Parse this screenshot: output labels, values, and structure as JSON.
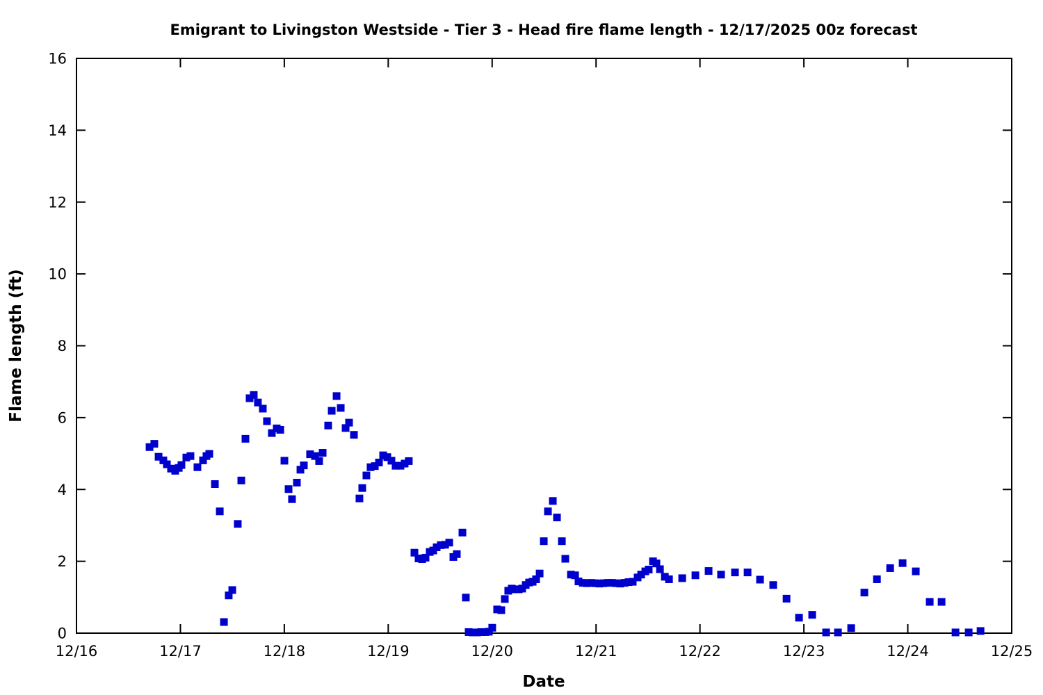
{
  "page": {
    "background_color": "#ffffff"
  },
  "chart_data": {
    "type": "scatter",
    "title": "Emigrant to Livingston Westside - Tier 3 - Head fire flame length - 12/17/2025 00z forecast",
    "xlabel": "Date",
    "ylabel": "Flame length (ft)",
    "grid": false,
    "legend": null,
    "xlim": [
      0,
      9
    ],
    "ylim": [
      0,
      16
    ],
    "x_tick_values": [
      0,
      1,
      2,
      3,
      4,
      5,
      6,
      7,
      8,
      9
    ],
    "x_tick_labels": [
      "12/16",
      "12/17",
      "12/18",
      "12/19",
      "12/20",
      "12/21",
      "12/22",
      "12/23",
      "12/24",
      "12/25"
    ],
    "y_tick_values": [
      0,
      2,
      4,
      6,
      8,
      10,
      12,
      14,
      16
    ],
    "y_tick_labels": [
      "0",
      "2",
      "4",
      "6",
      "8",
      "10",
      "12",
      "14",
      "16"
    ],
    "axis_color": "#000000",
    "marker": {
      "shape": "square",
      "size": 11,
      "color": "#0000cd"
    },
    "x_unit": "days since 12/16 00:00",
    "series": [
      {
        "name": "head-fire-flame-length",
        "points": [
          [
            0.703,
            5.18
          ],
          [
            0.749,
            5.27
          ],
          [
            0.79,
            4.91
          ],
          [
            0.836,
            4.81
          ],
          [
            0.87,
            4.7
          ],
          [
            0.91,
            4.58
          ],
          [
            0.95,
            4.52
          ],
          [
            0.984,
            4.6
          ],
          [
            1.01,
            4.68
          ],
          [
            1.057,
            4.89
          ],
          [
            1.097,
            4.93
          ],
          [
            1.164,
            4.62
          ],
          [
            1.218,
            4.81
          ],
          [
            1.251,
            4.93
          ],
          [
            1.278,
            4.99
          ],
          [
            1.332,
            4.15
          ],
          [
            1.379,
            3.39
          ],
          [
            1.419,
            0.31
          ],
          [
            1.465,
            1.05
          ],
          [
            1.499,
            1.2
          ],
          [
            1.552,
            3.04
          ],
          [
            1.586,
            4.25
          ],
          [
            1.626,
            5.41
          ],
          [
            1.666,
            6.54
          ],
          [
            1.706,
            6.63
          ],
          [
            1.746,
            6.42
          ],
          [
            1.793,
            6.25
          ],
          [
            1.833,
            5.9
          ],
          [
            1.88,
            5.57
          ],
          [
            1.927,
            5.7
          ],
          [
            1.961,
            5.66
          ],
          [
            2.001,
            4.8
          ],
          [
            2.041,
            4.01
          ],
          [
            2.074,
            3.73
          ],
          [
            2.121,
            4.19
          ],
          [
            2.155,
            4.55
          ],
          [
            2.188,
            4.67
          ],
          [
            2.248,
            4.98
          ],
          [
            2.295,
            4.93
          ],
          [
            2.335,
            4.79
          ],
          [
            2.369,
            5.02
          ],
          [
            2.422,
            5.78
          ],
          [
            2.456,
            6.19
          ],
          [
            2.503,
            6.6
          ],
          [
            2.543,
            6.27
          ],
          [
            2.59,
            5.71
          ],
          [
            2.623,
            5.86
          ],
          [
            2.67,
            5.52
          ],
          [
            2.723,
            3.75
          ],
          [
            2.75,
            4.04
          ],
          [
            2.79,
            4.39
          ],
          [
            2.83,
            4.62
          ],
          [
            2.871,
            4.65
          ],
          [
            2.911,
            4.75
          ],
          [
            2.951,
            4.95
          ],
          [
            2.991,
            4.9
          ],
          [
            3.031,
            4.8
          ],
          [
            3.071,
            4.66
          ],
          [
            3.118,
            4.66
          ],
          [
            3.158,
            4.72
          ],
          [
            3.198,
            4.79
          ],
          [
            3.252,
            2.24
          ],
          [
            3.292,
            2.08
          ],
          [
            3.326,
            2.06
          ],
          [
            3.359,
            2.1
          ],
          [
            3.399,
            2.26
          ],
          [
            3.433,
            2.3
          ],
          [
            3.466,
            2.39
          ],
          [
            3.506,
            2.45
          ],
          [
            3.547,
            2.46
          ],
          [
            3.587,
            2.52
          ],
          [
            3.627,
            2.12
          ],
          [
            3.66,
            2.2
          ],
          [
            3.714,
            2.8
          ],
          [
            3.747,
            0.99
          ],
          [
            3.774,
            0.03
          ],
          [
            3.814,
            0.02
          ],
          [
            3.854,
            0.02
          ],
          [
            3.894,
            0.03
          ],
          [
            3.934,
            0.03
          ],
          [
            3.968,
            0.04
          ],
          [
            4.001,
            0.15
          ],
          [
            4.048,
            0.66
          ],
          [
            4.088,
            0.64
          ],
          [
            4.122,
            0.95
          ],
          [
            4.155,
            1.18
          ],
          [
            4.189,
            1.24
          ],
          [
            4.222,
            1.22
          ],
          [
            4.256,
            1.22
          ],
          [
            4.289,
            1.24
          ],
          [
            4.323,
            1.34
          ],
          [
            4.356,
            1.41
          ],
          [
            4.39,
            1.43
          ],
          [
            4.423,
            1.5
          ],
          [
            4.457,
            1.66
          ],
          [
            4.497,
            2.56
          ],
          [
            4.537,
            3.39
          ],
          [
            4.584,
            3.68
          ],
          [
            4.624,
            3.22
          ],
          [
            4.671,
            2.56
          ],
          [
            4.704,
            2.07
          ],
          [
            4.758,
            1.63
          ],
          [
            4.798,
            1.61
          ],
          [
            4.831,
            1.44
          ],
          [
            4.872,
            1.4
          ],
          [
            4.912,
            1.39
          ],
          [
            4.952,
            1.4
          ],
          [
            4.992,
            1.39
          ],
          [
            5.032,
            1.38
          ],
          [
            5.072,
            1.39
          ],
          [
            5.113,
            1.4
          ],
          [
            5.153,
            1.4
          ],
          [
            5.193,
            1.39
          ],
          [
            5.233,
            1.38
          ],
          [
            5.273,
            1.4
          ],
          [
            5.313,
            1.42
          ],
          [
            5.353,
            1.43
          ],
          [
            5.4,
            1.55
          ],
          [
            5.434,
            1.63
          ],
          [
            5.474,
            1.72
          ],
          [
            5.507,
            1.77
          ],
          [
            5.548,
            2.0
          ],
          [
            5.581,
            1.94
          ],
          [
            5.615,
            1.78
          ],
          [
            5.662,
            1.57
          ],
          [
            5.702,
            1.5
          ],
          [
            5.829,
            1.53
          ],
          [
            5.956,
            1.61
          ],
          [
            6.083,
            1.73
          ],
          [
            6.203,
            1.63
          ],
          [
            6.337,
            1.69
          ],
          [
            6.458,
            1.69
          ],
          [
            6.578,
            1.49
          ],
          [
            6.705,
            1.34
          ],
          [
            6.833,
            0.96
          ],
          [
            6.953,
            0.43
          ],
          [
            7.08,
            0.51
          ],
          [
            7.214,
            0.02
          ],
          [
            7.328,
            0.02
          ],
          [
            7.455,
            0.14
          ],
          [
            7.582,
            1.13
          ],
          [
            7.703,
            1.5
          ],
          [
            7.83,
            1.81
          ],
          [
            7.95,
            1.95
          ],
          [
            8.077,
            1.72
          ],
          [
            8.211,
            0.87
          ],
          [
            8.325,
            0.87
          ],
          [
            8.459,
            0.02
          ],
          [
            8.586,
            0.02
          ],
          [
            8.7,
            0.06
          ]
        ]
      }
    ]
  }
}
